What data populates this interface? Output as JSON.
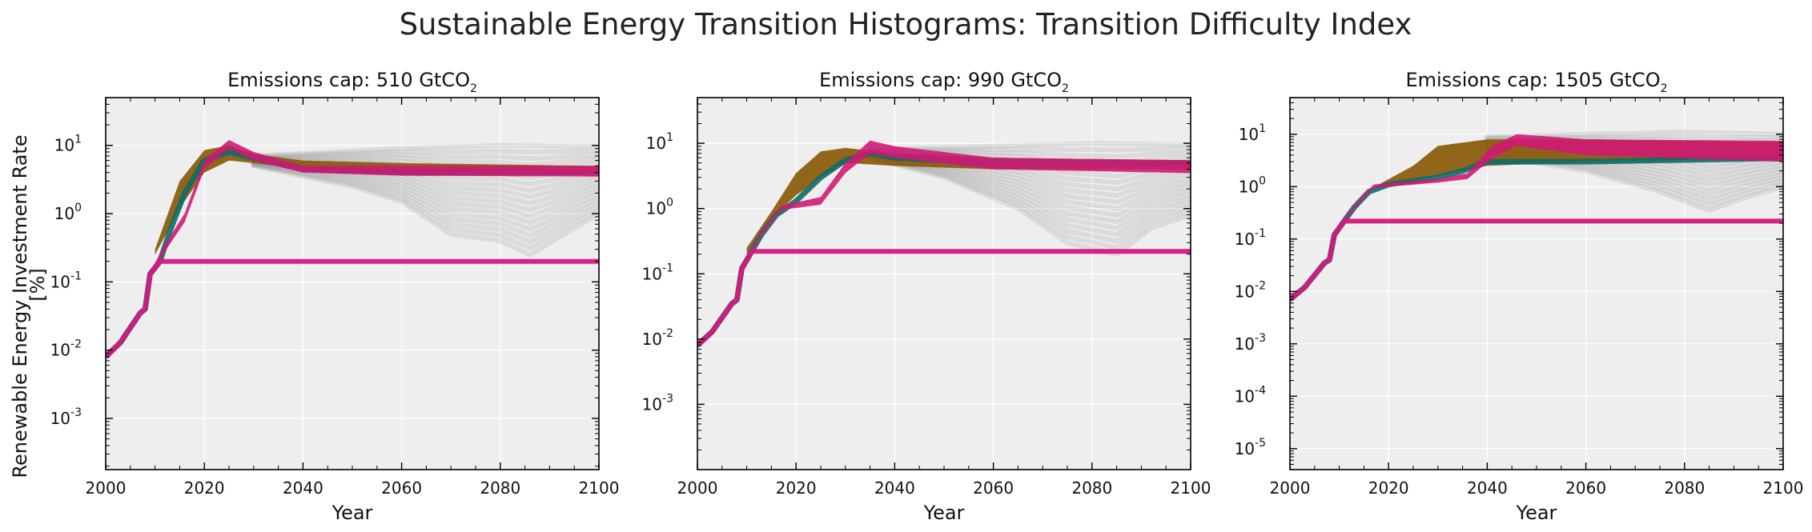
{
  "figure": {
    "title": "Sustainable Energy Transition Histograms: Transition Difficulty Index",
    "ylabel_line1": "Renewable Energy Investment Rate",
    "ylabel_line2": "[%]"
  },
  "colors": {
    "panel_bg": "#eeeeee",
    "grid": "#ffffff",
    "band_orange": "#8a5a08",
    "band_teal": "#0e6b66",
    "band_red": "#b3203c",
    "band_magenta": "#d4177f",
    "fan_gray": "#7a7a7a"
  },
  "chart_data": [
    {
      "type": "area",
      "title_prefix": "Emissions cap: 510 GtCO",
      "title_sub": "2",
      "xlabel": "Year",
      "yscale": "log",
      "xlim": [
        2000,
        2100
      ],
      "ylim_exp": [
        -3.75,
        1.7
      ],
      "xticks": [
        2000,
        2020,
        2040,
        2060,
        2080,
        2100
      ],
      "yticks_exp": [
        -3,
        -2,
        -1,
        0,
        1
      ],
      "ytick_base": "10",
      "grid": true,
      "series": {
        "base": [
          [
            2000,
            0.008
          ],
          [
            2003,
            0.013
          ],
          [
            2007,
            0.035
          ],
          [
            2008,
            0.04
          ],
          [
            2009,
            0.13
          ],
          [
            2011,
            0.2
          ],
          [
            2013,
            0.55
          ],
          [
            2016,
            2.0
          ],
          [
            2020,
            6.0
          ],
          [
            2025,
            8.0
          ],
          [
            2030,
            6.5
          ],
          [
            2040,
            4.5
          ],
          [
            2060,
            4.0
          ],
          [
            2100,
            4.0
          ]
        ],
        "orange_upper": [
          [
            2010,
            0.3
          ],
          [
            2015,
            3.0
          ],
          [
            2020,
            8.5
          ],
          [
            2025,
            10.0
          ],
          [
            2030,
            7.5
          ],
          [
            2040,
            6.0
          ],
          [
            2060,
            5.5
          ],
          [
            2100,
            5.0
          ]
        ],
        "orange_lower": [
          [
            2010,
            0.25
          ],
          [
            2015,
            1.2
          ],
          [
            2020,
            4.0
          ],
          [
            2025,
            6.0
          ],
          [
            2030,
            5.5
          ],
          [
            2040,
            4.5
          ],
          [
            2060,
            4.0
          ],
          [
            2100,
            4.0
          ]
        ],
        "magenta_upper": [
          [
            2009,
            0.14
          ],
          [
            2012,
            0.35
          ],
          [
            2016,
            1.0
          ],
          [
            2020,
            6.0
          ],
          [
            2025,
            12.0
          ],
          [
            2030,
            8.0
          ],
          [
            2040,
            5.0
          ],
          [
            2060,
            5.0
          ],
          [
            2100,
            5.0
          ]
        ],
        "magenta_lower": [
          [
            2009,
            0.12
          ],
          [
            2012,
            0.28
          ],
          [
            2016,
            0.75
          ],
          [
            2020,
            4.5
          ],
          [
            2025,
            9.0
          ],
          [
            2030,
            6.0
          ],
          [
            2040,
            4.0
          ],
          [
            2060,
            3.6
          ],
          [
            2100,
            3.5
          ]
        ],
        "fan_top": [
          [
            2030,
            7.0
          ],
          [
            2060,
            9.0
          ],
          [
            2080,
            10.0
          ],
          [
            2100,
            9.5
          ]
        ],
        "fan_bottom": [
          [
            2030,
            5.0
          ],
          [
            2050,
            2.5
          ],
          [
            2060,
            1.5
          ],
          [
            2070,
            0.5
          ],
          [
            2080,
            0.4
          ],
          [
            2086,
            0.25
          ],
          [
            2093,
            0.5
          ],
          [
            2100,
            1.0
          ]
        ]
      }
    },
    {
      "type": "area",
      "title_prefix": "Emissions cap: 990 GtCO",
      "title_sub": "2",
      "xlabel": "Year",
      "yscale": "log",
      "xlim": [
        2000,
        2100
      ],
      "ylim_exp": [
        -4.0,
        1.7
      ],
      "xticks": [
        2000,
        2020,
        2040,
        2060,
        2080,
        2100
      ],
      "yticks_exp": [
        -3,
        -2,
        -1,
        0,
        1
      ],
      "ytick_base": "10",
      "grid": true,
      "series": {
        "base": [
          [
            2000,
            0.008
          ],
          [
            2003,
            0.013
          ],
          [
            2007,
            0.035
          ],
          [
            2008,
            0.04
          ],
          [
            2009,
            0.12
          ],
          [
            2011,
            0.22
          ],
          [
            2013,
            0.4
          ],
          [
            2016,
            0.8
          ],
          [
            2020,
            1.3
          ],
          [
            2025,
            3.0
          ],
          [
            2030,
            5.5
          ],
          [
            2035,
            7.0
          ],
          [
            2040,
            6.0
          ],
          [
            2060,
            5.0
          ],
          [
            2100,
            5.0
          ]
        ],
        "orange_upper": [
          [
            2010,
            0.25
          ],
          [
            2015,
            0.9
          ],
          [
            2020,
            3.5
          ],
          [
            2025,
            7.5
          ],
          [
            2030,
            8.5
          ],
          [
            2040,
            7.0
          ],
          [
            2060,
            6.0
          ],
          [
            2100,
            5.5
          ]
        ],
        "orange_lower": [
          [
            2010,
            0.2
          ],
          [
            2015,
            0.7
          ],
          [
            2020,
            1.6
          ],
          [
            2025,
            3.0
          ],
          [
            2030,
            5.0
          ],
          [
            2040,
            4.5
          ],
          [
            2060,
            4.0
          ],
          [
            2100,
            4.0
          ]
        ],
        "magenta_upper": [
          [
            2009,
            0.13
          ],
          [
            2013,
            0.45
          ],
          [
            2017,
            1.1
          ],
          [
            2025,
            1.5
          ],
          [
            2030,
            5.0
          ],
          [
            2035,
            11.0
          ],
          [
            2040,
            9.0
          ],
          [
            2060,
            6.0
          ],
          [
            2100,
            5.5
          ]
        ],
        "magenta_lower": [
          [
            2009,
            0.11
          ],
          [
            2013,
            0.38
          ],
          [
            2017,
            0.95
          ],
          [
            2025,
            1.15
          ],
          [
            2030,
            3.5
          ],
          [
            2035,
            7.0
          ],
          [
            2040,
            6.0
          ],
          [
            2060,
            4.0
          ],
          [
            2100,
            3.5
          ]
        ],
        "fan_top": [
          [
            2035,
            8.0
          ],
          [
            2060,
            9.0
          ],
          [
            2080,
            10.0
          ],
          [
            2100,
            9.5
          ]
        ],
        "fan_bottom": [
          [
            2035,
            6.0
          ],
          [
            2050,
            3.0
          ],
          [
            2065,
            1.0
          ],
          [
            2075,
            0.3
          ],
          [
            2085,
            0.2
          ],
          [
            2092,
            0.5
          ],
          [
            2100,
            0.8
          ]
        ]
      }
    },
    {
      "type": "area",
      "title_prefix": "Emissions cap: 1505 GtCO",
      "title_sub": "2",
      "xlabel": "Year",
      "yscale": "log",
      "xlim": [
        2000,
        2100
      ],
      "ylim_exp": [
        -5.4,
        1.7
      ],
      "xticks": [
        2000,
        2020,
        2040,
        2060,
        2080,
        2100
      ],
      "yticks_exp": [
        -5,
        -4,
        -3,
        -2,
        -1,
        0,
        1
      ],
      "ytick_base": "10",
      "grid": true,
      "series": {
        "base": [
          [
            2000,
            0.007
          ],
          [
            2003,
            0.012
          ],
          [
            2007,
            0.035
          ],
          [
            2008,
            0.04
          ],
          [
            2009,
            0.12
          ],
          [
            2011,
            0.22
          ],
          [
            2013,
            0.4
          ],
          [
            2016,
            0.8
          ],
          [
            2020,
            1.1
          ],
          [
            2030,
            1.5
          ],
          [
            2035,
            2.0
          ],
          [
            2040,
            3.0
          ],
          [
            2050,
            3.0
          ],
          [
            2060,
            3.0
          ],
          [
            2100,
            3.5
          ]
        ],
        "orange_upper": [
          [
            2018,
            1.1
          ],
          [
            2025,
            2.5
          ],
          [
            2030,
            6.0
          ],
          [
            2040,
            8.0
          ],
          [
            2060,
            8.0
          ],
          [
            2100,
            7.0
          ]
        ],
        "orange_lower": [
          [
            2018,
            1.0
          ],
          [
            2025,
            1.3
          ],
          [
            2030,
            1.6
          ],
          [
            2040,
            2.5
          ],
          [
            2060,
            3.0
          ],
          [
            2100,
            3.5
          ]
        ],
        "magenta_upper": [
          [
            2009,
            0.13
          ],
          [
            2013,
            0.45
          ],
          [
            2017,
            1.1
          ],
          [
            2030,
            1.4
          ],
          [
            2036,
            1.8
          ],
          [
            2041,
            6.0
          ],
          [
            2046,
            10.0
          ],
          [
            2060,
            8.0
          ],
          [
            2100,
            7.5
          ]
        ],
        "magenta_lower": [
          [
            2009,
            0.11
          ],
          [
            2013,
            0.38
          ],
          [
            2017,
            0.95
          ],
          [
            2030,
            1.2
          ],
          [
            2036,
            1.4
          ],
          [
            2041,
            3.5
          ],
          [
            2046,
            6.0
          ],
          [
            2060,
            4.0
          ],
          [
            2100,
            3.0
          ]
        ],
        "fan_top": [
          [
            2040,
            9.0
          ],
          [
            2060,
            10.0
          ],
          [
            2080,
            11.0
          ],
          [
            2100,
            10.0
          ]
        ],
        "fan_bottom": [
          [
            2040,
            4.0
          ],
          [
            2060,
            2.0
          ],
          [
            2075,
            0.8
          ],
          [
            2085,
            0.35
          ],
          [
            2092,
            0.6
          ],
          [
            2100,
            1.0
          ]
        ]
      }
    }
  ]
}
